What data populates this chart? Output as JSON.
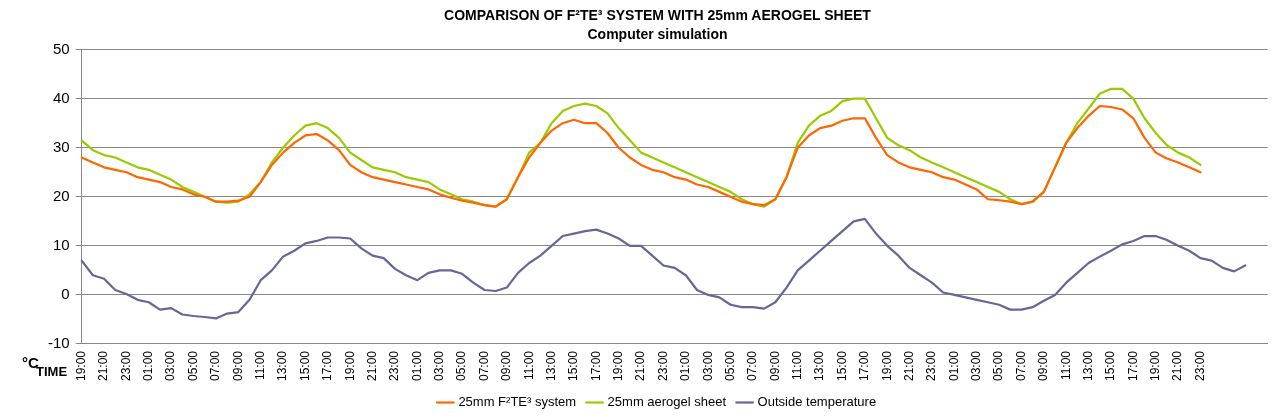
{
  "chart_data": {
    "type": "line",
    "title": "COMPARISON OF F²TE³ SYSTEM WITH 25mm AEROGEL SHEET",
    "subtitle": "Computer simulation",
    "xlabel": "TIME",
    "ylabel": "°C",
    "categories": [
      "19:00",
      null,
      "21:00",
      null,
      "23:00",
      null,
      "01:00",
      null,
      "03:00",
      null,
      "05:00",
      null,
      "07:00",
      null,
      "09:00",
      null,
      "11:00",
      null,
      "13:00",
      null,
      "15:00",
      null,
      "17:00",
      null,
      "19:00",
      null,
      "21:00",
      null,
      "23:00",
      null,
      "01:00",
      null,
      "03:00",
      null,
      "05:00",
      null,
      "07:00",
      null,
      "09:00",
      null,
      "11:00",
      null,
      "13:00",
      null,
      "15:00",
      null,
      "17:00",
      null,
      "19:00",
      null,
      "21:00",
      null,
      "23:00",
      null,
      "01:00",
      null,
      "03:00",
      null,
      "05:00",
      null,
      "07:00",
      null,
      "09:00",
      null,
      "11:00",
      null,
      "13:00",
      null,
      "15:00",
      null,
      "17:00",
      null,
      "19:00",
      null,
      "21:00",
      null,
      "23:00",
      null,
      "01:00",
      null,
      "03:00",
      null,
      "05:00",
      null,
      "07:00",
      null,
      "09:00",
      null,
      "11:00",
      null,
      "13:00",
      null,
      "15:00",
      null,
      "17:00",
      null,
      "19:00",
      null,
      "21:00",
      null,
      "23:00",
      null,
      null,
      null,
      null,
      null,
      null
    ],
    "series": [
      {
        "name": "25mm F²TE³ system",
        "color": "#ff6600",
        "values": [
          28,
          27,
          26,
          25.5,
          25,
          24,
          23.5,
          23,
          22,
          21.5,
          20.5,
          20,
          19,
          19,
          19.2,
          20,
          23,
          26.5,
          29,
          31,
          32.5,
          32.8,
          31.5,
          29.5,
          26.5,
          25,
          24,
          23.5,
          23,
          22.5,
          22,
          21.5,
          20.5,
          19.8,
          19.2,
          18.8,
          18.3,
          18,
          19.5,
          24,
          28,
          31,
          33.5,
          35,
          35.7,
          35,
          35,
          33,
          30,
          28,
          26.5,
          25.5,
          25,
          24,
          23.5,
          22.5,
          22,
          21,
          20,
          19,
          18.5,
          18.3,
          19.5,
          24,
          30,
          32.5,
          34,
          34.5,
          35.5,
          36,
          36,
          32,
          28.5,
          27,
          26,
          25.5,
          25,
          24,
          23.5,
          22.5,
          21.5,
          19.5,
          19.3,
          19,
          18.5,
          19,
          21,
          26,
          31,
          34,
          36.5,
          38.5,
          38.3,
          37.8,
          36,
          32,
          29,
          27.8,
          27,
          26,
          25,
          null,
          null,
          null,
          null,
          null,
          null
        ]
      },
      {
        "name": "25mm aerogel sheet",
        "color": "#99cc00",
        "values": [
          31.5,
          29.5,
          28.5,
          28,
          27,
          26,
          25.5,
          24.5,
          23.5,
          22,
          21,
          20,
          19,
          18.8,
          19,
          20.5,
          23,
          27,
          30,
          32.5,
          34.5,
          35,
          34,
          32,
          29,
          27.5,
          26,
          25.5,
          25,
          24,
          23.5,
          23,
          21.5,
          20.5,
          19.5,
          19,
          18.3,
          18,
          19.5,
          24,
          29,
          31,
          35,
          37.5,
          38.5,
          39,
          38.5,
          37,
          34,
          31.5,
          29,
          28,
          27,
          26,
          25,
          24,
          23,
          22,
          21,
          19.5,
          18.5,
          18,
          19.5,
          24,
          31,
          34.5,
          36.5,
          37.5,
          39.5,
          40,
          40,
          36,
          32,
          30.5,
          29.5,
          28,
          27,
          26,
          25,
          24,
          23,
          22,
          21,
          19.5,
          18.5,
          19,
          21,
          26,
          31,
          35,
          38,
          41,
          42,
          42,
          40,
          36,
          33,
          30.5,
          29,
          28,
          26.5,
          null,
          null,
          null,
          null,
          null,
          null
        ]
      },
      {
        "name": "Outside temperature",
        "color": "#666699",
        "values": [
          7,
          4,
          3.3,
          1,
          0.2,
          -1,
          -1.5,
          -3,
          -2.7,
          -4,
          -4.3,
          -4.5,
          -4.8,
          -3.8,
          -3.5,
          -1,
          3,
          5,
          7.8,
          9,
          10.5,
          11,
          11.7,
          11.7,
          11.5,
          9.5,
          8,
          7.5,
          5.3,
          4,
          3,
          4.5,
          5,
          5,
          4.3,
          2.5,
          1,
          0.8,
          1.5,
          4.5,
          6.5,
          8,
          10,
          12,
          12.5,
          13,
          13.3,
          12.5,
          11.5,
          10,
          10,
          8,
          6,
          5.5,
          4,
          1,
          0,
          -0.5,
          -2,
          -2.5,
          -2.5,
          -2.8,
          -1.5,
          1.5,
          5,
          7,
          9,
          11,
          13,
          15,
          15.5,
          12.5,
          10,
          8,
          5.5,
          4,
          2.5,
          0.5,
          0,
          -0.5,
          -1,
          -1.5,
          -2,
          -3,
          -3,
          -2.5,
          -1.2,
          0,
          2.5,
          4.5,
          6.5,
          7.8,
          9,
          10.3,
          11,
          12,
          12,
          11.2,
          10,
          9,
          7.5,
          7,
          5.5,
          4.8,
          6,
          null,
          null
        ]
      }
    ],
    "ylim": [
      -10,
      50
    ],
    "yticks": [
      -10,
      0,
      10,
      20,
      30,
      40,
      50
    ],
    "grid": "y",
    "legend": "bottom",
    "marker": "none",
    "line_style": "solid"
  }
}
